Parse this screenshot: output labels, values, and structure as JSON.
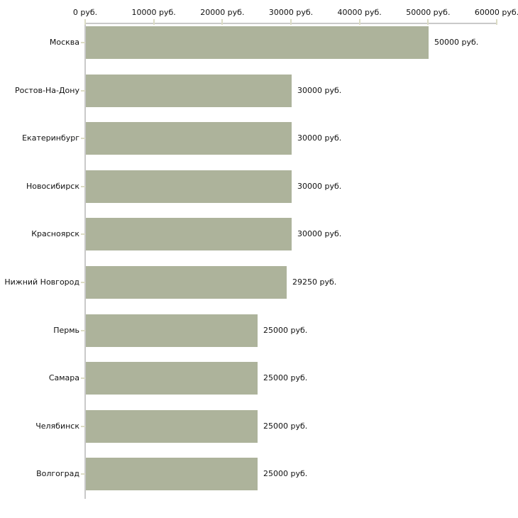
{
  "chart_data": {
    "type": "bar",
    "orientation": "horizontal",
    "title": "",
    "xlabel": "",
    "ylabel": "",
    "unit": "руб.",
    "xlim": [
      0,
      60000
    ],
    "grid": false,
    "legend": false,
    "colors": {
      "bar": "#adb39b",
      "axis_line": "#c9c9c9",
      "tick_mark": "#dcdcc5",
      "text": "#111111",
      "background": "#ffffff"
    },
    "x_ticks": [
      {
        "value": 0,
        "label": "0 руб."
      },
      {
        "value": 10000,
        "label": "10000 руб."
      },
      {
        "value": 20000,
        "label": "20000 руб."
      },
      {
        "value": 30000,
        "label": "30000 руб."
      },
      {
        "value": 40000,
        "label": "40000 руб."
      },
      {
        "value": 50000,
        "label": "50000 руб."
      },
      {
        "value": 60000,
        "label": "60000 руб."
      }
    ],
    "categories": [
      "Москва",
      "Ростов-На-Дону",
      "Екатеринбург",
      "Новосибирск",
      "Красноярск",
      "Нижний Новгород",
      "Пермь",
      "Самара",
      "Челябинск",
      "Волгоград"
    ],
    "values": [
      50000,
      30000,
      30000,
      30000,
      30000,
      29250,
      25000,
      25000,
      25000,
      25000
    ],
    "rows": [
      {
        "category": "Москва",
        "value": 50000,
        "value_label": "50000 руб."
      },
      {
        "category": "Ростов-На-Дону",
        "value": 30000,
        "value_label": "30000 руб."
      },
      {
        "category": "Екатеринбург",
        "value": 30000,
        "value_label": "30000 руб."
      },
      {
        "category": "Новосибирск",
        "value": 30000,
        "value_label": "30000 руб."
      },
      {
        "category": "Красноярск",
        "value": 30000,
        "value_label": "30000 руб."
      },
      {
        "category": "Нижний Новгород",
        "value": 29250,
        "value_label": "29250 руб."
      },
      {
        "category": "Пермь",
        "value": 25000,
        "value_label": "25000 руб."
      },
      {
        "category": "Самара",
        "value": 25000,
        "value_label": "25000 руб."
      },
      {
        "category": "Челябинск",
        "value": 25000,
        "value_label": "25000 руб."
      },
      {
        "category": "Волгоград",
        "value": 25000,
        "value_label": "25000 руб."
      }
    ]
  }
}
